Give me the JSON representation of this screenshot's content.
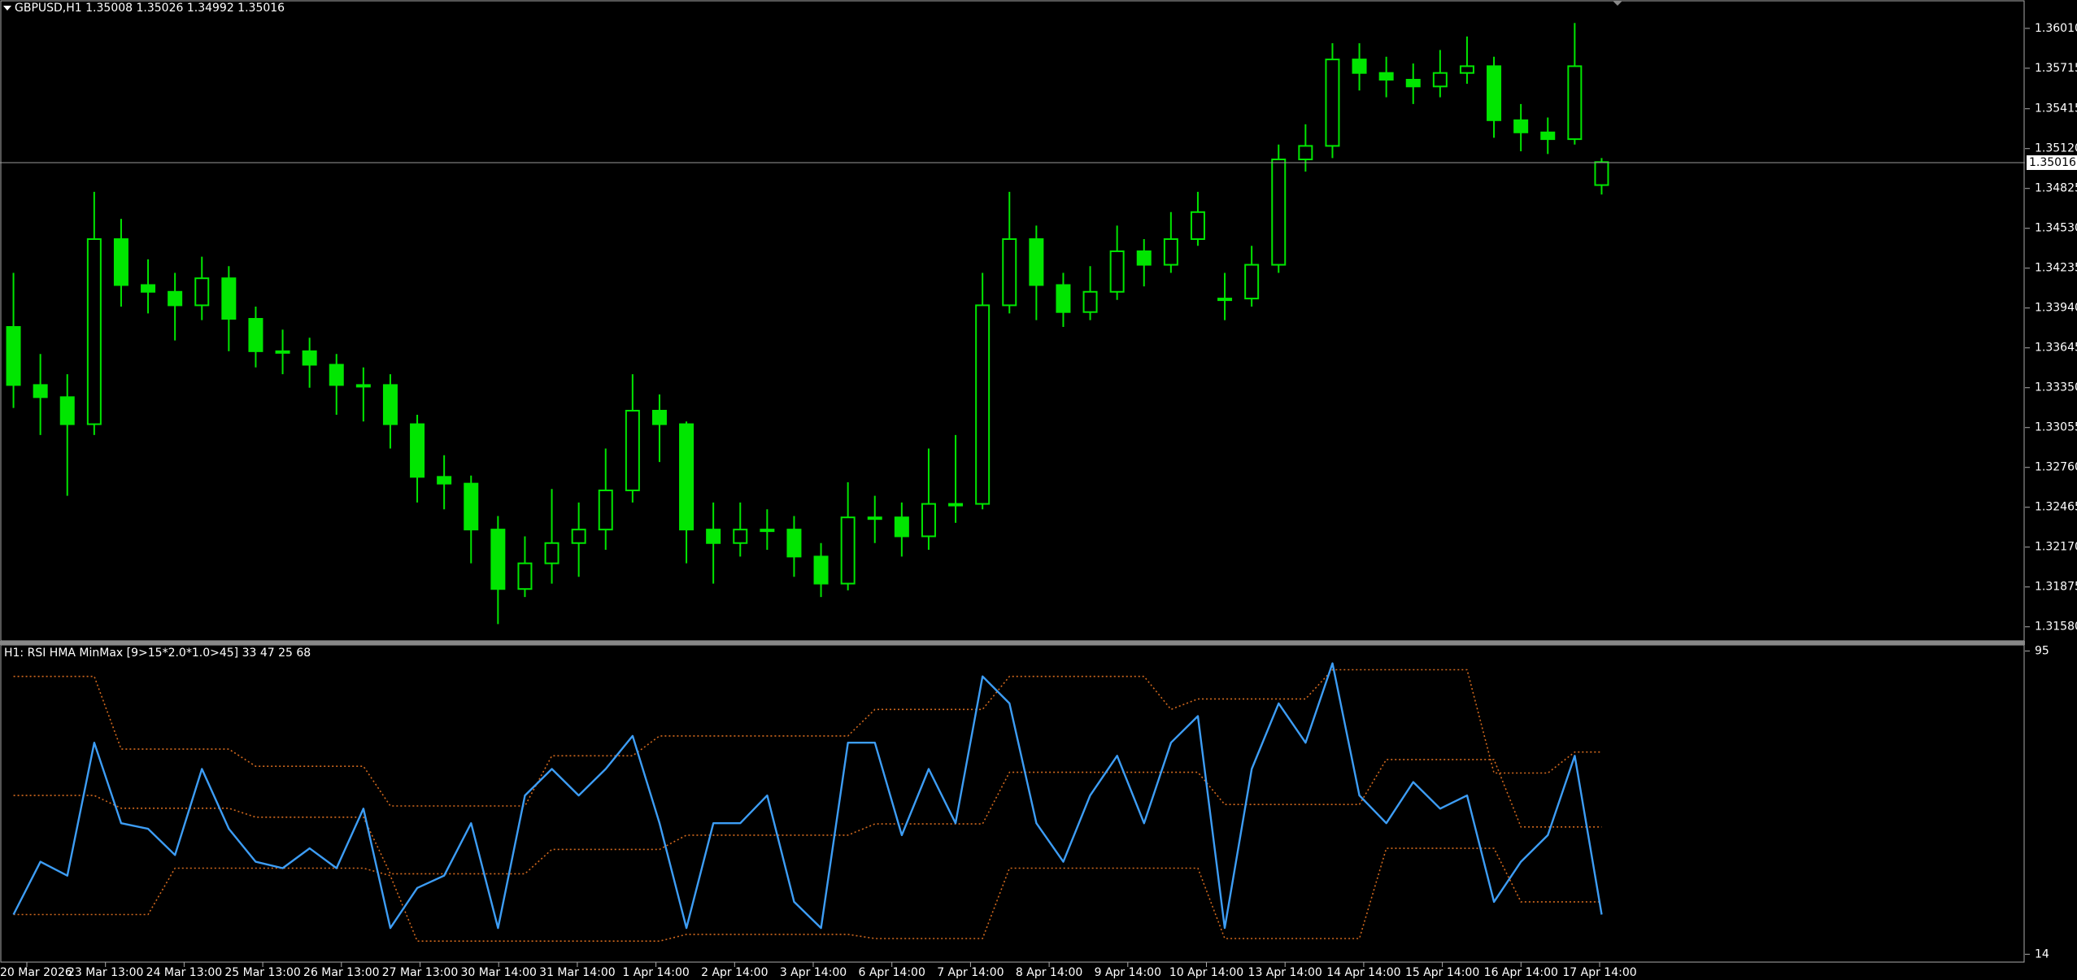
{
  "chart_data": [
    {
      "type": "candlestick",
      "title": "GBPUSD,H1  1.35008 1.35026 1.34992 1.35016",
      "color": "#00e600",
      "ohlc": [
        [
          1.338,
          1.342,
          1.332,
          1.3337
        ],
        [
          1.3337,
          1.336,
          1.33,
          1.3328
        ],
        [
          1.3328,
          1.3345,
          1.3255,
          1.3308
        ],
        [
          1.3308,
          1.348,
          1.33,
          1.3445
        ],
        [
          1.3445,
          1.346,
          1.3395,
          1.3411
        ],
        [
          1.3411,
          1.343,
          1.339,
          1.3406
        ],
        [
          1.3406,
          1.342,
          1.337,
          1.3396
        ],
        [
          1.3396,
          1.3432,
          1.3385,
          1.3416
        ],
        [
          1.3416,
          1.3425,
          1.3362,
          1.3386
        ],
        [
          1.3386,
          1.3395,
          1.335,
          1.3362
        ],
        [
          1.3362,
          1.3378,
          1.3345,
          1.3362
        ],
        [
          1.3362,
          1.3372,
          1.3335,
          1.3352
        ],
        [
          1.3352,
          1.336,
          1.3315,
          1.3337
        ],
        [
          1.3337,
          1.335,
          1.331,
          1.3337
        ],
        [
          1.3337,
          1.3345,
          1.329,
          1.3308
        ],
        [
          1.3308,
          1.3315,
          1.325,
          1.3269
        ],
        [
          1.3269,
          1.3285,
          1.3245,
          1.3264
        ],
        [
          1.3264,
          1.327,
          1.3205,
          1.323
        ],
        [
          1.323,
          1.324,
          1.316,
          1.3186
        ],
        [
          1.3186,
          1.3225,
          1.318,
          1.3205
        ],
        [
          1.3205,
          1.326,
          1.319,
          1.322
        ],
        [
          1.322,
          1.325,
          1.3195,
          1.323
        ],
        [
          1.323,
          1.329,
          1.3215,
          1.3259
        ],
        [
          1.3259,
          1.3345,
          1.325,
          1.3318
        ],
        [
          1.3318,
          1.333,
          1.328,
          1.3308
        ],
        [
          1.3308,
          1.331,
          1.3205,
          1.323
        ],
        [
          1.323,
          1.325,
          1.319,
          1.322
        ],
        [
          1.322,
          1.325,
          1.321,
          1.323
        ],
        [
          1.323,
          1.3245,
          1.3215,
          1.323
        ],
        [
          1.323,
          1.324,
          1.3195,
          1.321
        ],
        [
          1.321,
          1.322,
          1.318,
          1.319
        ],
        [
          1.319,
          1.3265,
          1.3185,
          1.3239
        ],
        [
          1.3239,
          1.3255,
          1.322,
          1.3239
        ],
        [
          1.3239,
          1.325,
          1.321,
          1.3225
        ],
        [
          1.3225,
          1.329,
          1.3215,
          1.3249
        ],
        [
          1.3249,
          1.33,
          1.3235,
          1.3249
        ],
        [
          1.3249,
          1.342,
          1.3245,
          1.3396
        ],
        [
          1.3396,
          1.348,
          1.339,
          1.3445
        ],
        [
          1.3445,
          1.3455,
          1.3385,
          1.3411
        ],
        [
          1.3411,
          1.342,
          1.338,
          1.3391
        ],
        [
          1.3391,
          1.3425,
          1.3385,
          1.3406
        ],
        [
          1.3406,
          1.3455,
          1.34,
          1.3436
        ],
        [
          1.3436,
          1.3445,
          1.341,
          1.3426
        ],
        [
          1.3426,
          1.3465,
          1.342,
          1.3445
        ],
        [
          1.3445,
          1.348,
          1.344,
          1.3465
        ],
        [
          1.3401,
          1.342,
          1.3385,
          1.3401
        ],
        [
          1.3401,
          1.344,
          1.3395,
          1.3426
        ],
        [
          1.3426,
          1.3515,
          1.342,
          1.3504
        ],
        [
          1.3504,
          1.353,
          1.3495,
          1.3514
        ],
        [
          1.3514,
          1.359,
          1.3505,
          1.3578
        ],
        [
          1.3578,
          1.359,
          1.3555,
          1.3568
        ],
        [
          1.3568,
          1.358,
          1.355,
          1.3563
        ],
        [
          1.3563,
          1.3575,
          1.3545,
          1.3558
        ],
        [
          1.3558,
          1.3585,
          1.355,
          1.3568
        ],
        [
          1.3568,
          1.3595,
          1.356,
          1.3573
        ],
        [
          1.3573,
          1.358,
          1.352,
          1.3533
        ],
        [
          1.3533,
          1.3545,
          1.351,
          1.3524
        ],
        [
          1.3524,
          1.3535,
          1.3508,
          1.3519
        ],
        [
          1.3519,
          1.3605,
          1.3515,
          1.3573
        ],
        [
          1.3485,
          1.3505,
          1.3478,
          1.3502
        ]
      ],
      "ylim": [
        1.3147,
        1.3622
      ],
      "yticks": [
        {
          "value": 1.3601,
          "label": "1.36010"
        },
        {
          "value": 1.35715,
          "label": "1.35715"
        },
        {
          "value": 1.35415,
          "label": "1.35415"
        },
        {
          "value": 1.3512,
          "label": "1.35120"
        },
        {
          "value": 1.34825,
          "label": "1.34825"
        },
        {
          "value": 1.3453,
          "label": "1.34530"
        },
        {
          "value": 1.34235,
          "label": "1.34235"
        },
        {
          "value": 1.3394,
          "label": "1.33940"
        },
        {
          "value": 1.33645,
          "label": "1.33645"
        },
        {
          "value": 1.3335,
          "label": "1.33350"
        },
        {
          "value": 1.33055,
          "label": "1.33055"
        },
        {
          "value": 1.3276,
          "label": "1.32760"
        },
        {
          "value": 1.32465,
          "label": "1.32465"
        },
        {
          "value": 1.3217,
          "label": "1.32170"
        },
        {
          "value": 1.31875,
          "label": "1.31875"
        },
        {
          "value": 1.3158,
          "label": "1.31580"
        }
      ],
      "last_price": 1.35016
    },
    {
      "type": "line",
      "title": "H1: RSI HMA MinMax [9>15*2.0*1.0>45]  33 47 25 68",
      "series": [
        {
          "color": "#d2691e",
          "dotted": true,
          "values": [
            88.2,
            88.2,
            88.2,
            88.2,
            68.8,
            68.8,
            68.8,
            68.8,
            68.8,
            64.2,
            64.2,
            64.2,
            64.2,
            64.2,
            53.6,
            53.6,
            53.6,
            53.6,
            53.6,
            53.6,
            67,
            67,
            67,
            67,
            72.3,
            72.3,
            72.3,
            72.3,
            72.3,
            72.3,
            72.3,
            72.3,
            79.4,
            79.4,
            79.4,
            79.4,
            79.4,
            88.2,
            88.2,
            88.2,
            88.2,
            88.2,
            88.2,
            79.4,
            82.2,
            82.2,
            82.2,
            82.2,
            82.2,
            90,
            90,
            90,
            90,
            90,
            90,
            62.4,
            62.4,
            62.4,
            68,
            68
          ]
        },
        {
          "color": "#d2691e",
          "dotted": true,
          "values": [
            56.4,
            56.4,
            56.4,
            56.4,
            53,
            53,
            53,
            53,
            53,
            50.6,
            50.6,
            50.6,
            50.6,
            50.6,
            35.5,
            35.5,
            35.5,
            35.5,
            35.5,
            35.5,
            42,
            42,
            42,
            42,
            42,
            45.8,
            45.8,
            45.8,
            45.8,
            45.8,
            45.8,
            45.8,
            48.8,
            48.8,
            48.8,
            48.8,
            48.8,
            62.6,
            62.6,
            62.6,
            62.6,
            62.6,
            62.6,
            62.6,
            62.6,
            54,
            54,
            54,
            54,
            54,
            54,
            66,
            66,
            66,
            66,
            66,
            48,
            48,
            48,
            48
          ]
        },
        {
          "color": "#d2691e",
          "dotted": true,
          "values": [
            24.6,
            24.6,
            24.6,
            24.6,
            24.6,
            24.6,
            37,
            37,
            37,
            37,
            37,
            37,
            37,
            37,
            35,
            17.5,
            17.5,
            17.5,
            17.5,
            17.5,
            17.5,
            17.5,
            17.5,
            17.5,
            17.5,
            19.3,
            19.3,
            19.3,
            19.3,
            19.3,
            19.3,
            19.3,
            18.2,
            18.2,
            18.2,
            18.2,
            18.2,
            37,
            37,
            37,
            37,
            37,
            37,
            37,
            37,
            18.2,
            18.2,
            18.2,
            18.2,
            18.2,
            18.2,
            42.3,
            42.3,
            42.3,
            42.3,
            42.3,
            28,
            28,
            28,
            28
          ]
        },
        {
          "color": "#3d9df5",
          "dotted": false,
          "values": [
            24.6,
            38.7,
            35,
            70.5,
            49,
            47.5,
            40.5,
            63.5,
            47.5,
            38.7,
            37,
            42.3,
            37,
            52.9,
            21,
            31.7,
            35,
            49,
            21,
            56.4,
            63.5,
            56.4,
            63.5,
            72.3,
            49,
            21,
            49,
            49,
            56.4,
            28,
            21,
            70.5,
            70.5,
            45.8,
            63.5,
            49,
            88.2,
            81,
            49,
            38.7,
            56.4,
            67,
            49,
            70.5,
            77.6,
            21,
            63.5,
            81,
            70.5,
            91.7,
            56.4,
            49,
            60,
            52.9,
            56.4,
            28,
            38.7,
            45.8,
            67,
            24.6
          ]
        }
      ],
      "ylim": [
        11.9,
        96.4
      ],
      "yticks": [
        14,
        95
      ]
    }
  ],
  "time_axis": {
    "labels": [
      "20 Mar 2026",
      "23 Mar 13:00",
      "24 Mar 13:00",
      "25 Mar 13:00",
      "26 Mar 13:00",
      "27 Mar 13:00",
      "30 Mar 14:00",
      "31 Mar 14:00",
      "1 Apr 14:00",
      "2 Apr 14:00",
      "3 Apr 14:00",
      "6 Apr 14:00",
      "7 Apr 14:00",
      "8 Apr 14:00",
      "9 Apr 14:00",
      "10 Apr 14:00",
      "13 Apr 14:00",
      "14 Apr 14:00",
      "15 Apr 14:00",
      "16 Apr 14:00",
      "17 Apr 14:00"
    ]
  }
}
